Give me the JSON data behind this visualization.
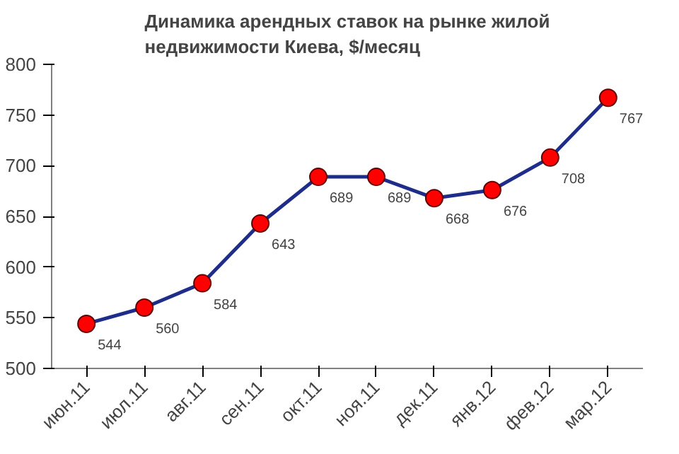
{
  "chart_data": {
    "type": "line",
    "title": "Динамика арендных ставок на рынке жилой недвижимости Киева, $/месяц",
    "categories": [
      "июн.11",
      "июл.11",
      "авг.11",
      "сен.11",
      "окт.11",
      "ноя.11",
      "дек.11",
      "янв.12",
      "фев.12",
      "мар.12"
    ],
    "series": [
      {
        "color": "#1f2d8a",
        "colors": [
          "#ff0000",
          "#ff0000",
          "#ff0000",
          "#ff0000",
          "#ff0000",
          "#ff0000",
          "#ff0000",
          "#ff0000",
          "#ff0000",
          "#ff0000"
        ],
        "values": [
          544,
          560,
          584,
          643,
          689,
          689,
          668,
          676,
          708,
          767
        ]
      }
    ],
    "marker": "circle",
    "ylim": [
      500,
      800
    ],
    "yticks": [
      500,
      550,
      600,
      650,
      700,
      750,
      800
    ],
    "data_labels": true,
    "grid": false
  }
}
